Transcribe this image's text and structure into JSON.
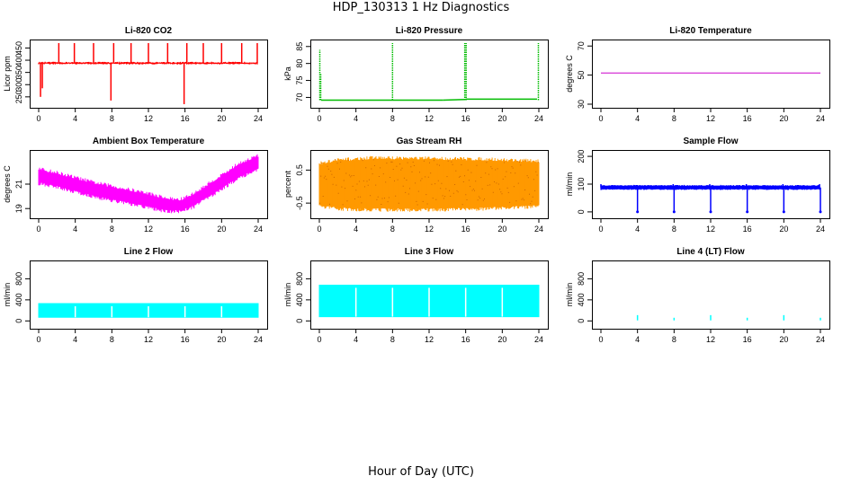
{
  "figure": {
    "title": "HDP_130313  1 Hz Diagnostics",
    "xlabel": "Hour of Day (UTC)"
  },
  "chart_data": [
    {
      "type": "line",
      "title": "Li-820 CO2",
      "ylabel": "Licor ppm",
      "color": "#ff0000",
      "xlim": [
        0,
        24
      ],
      "xticks": [
        0,
        4,
        8,
        12,
        16,
        20,
        24
      ],
      "ylim": [
        220,
        470
      ],
      "yticks": [
        250,
        300,
        350,
        400,
        450
      ],
      "base": 388,
      "noise": 4,
      "band": 1.5,
      "spikes": [
        {
          "x": 0.2,
          "y": 250
        },
        {
          "x": 0.4,
          "y": 285
        },
        {
          "x": 2.2,
          "y": 470
        },
        {
          "x": 3.9,
          "y": 470
        },
        {
          "x": 6.0,
          "y": 470
        },
        {
          "x": 7.9,
          "y": 235
        },
        {
          "x": 8.2,
          "y": 470
        },
        {
          "x": 10.1,
          "y": 470
        },
        {
          "x": 12.0,
          "y": 470
        },
        {
          "x": 14.1,
          "y": 470
        },
        {
          "x": 15.9,
          "y": 220
        },
        {
          "x": 16.2,
          "y": 470
        },
        {
          "x": 18.0,
          "y": 470
        },
        {
          "x": 20.0,
          "y": 470
        },
        {
          "x": 22.2,
          "y": 470
        },
        {
          "x": 23.9,
          "y": 470
        }
      ]
    },
    {
      "type": "line",
      "title": "Li-820 Pressure",
      "ylabel": "kPa",
      "color": "#00bb00",
      "xlim": [
        0,
        24
      ],
      "xticks": [
        0,
        4,
        8,
        12,
        16,
        20,
        24
      ],
      "ylim": [
        68,
        86
      ],
      "yticks": [
        70,
        75,
        80,
        85
      ],
      "segments": [
        {
          "x0": 0.2,
          "x1": 13.5,
          "y0": 69.2,
          "y1": 69.2
        },
        {
          "x0": 13.5,
          "x1": 16.0,
          "y0": 69.2,
          "y1": 69.4
        },
        {
          "x0": 16.0,
          "x1": 23.8,
          "y0": 69.5,
          "y1": 69.5
        }
      ],
      "spikes": [
        {
          "x": 0.05,
          "y": 84
        },
        {
          "x": 0.15,
          "y": 77
        },
        {
          "x": 8.0,
          "y": 86
        },
        {
          "x": 15.9,
          "y": 86
        },
        {
          "x": 16.05,
          "y": 86
        },
        {
          "x": 23.95,
          "y": 86
        }
      ]
    },
    {
      "type": "line",
      "title": "Li-820 Temperature",
      "ylabel": "degrees C",
      "color": "#cc00cc",
      "xlim": [
        0,
        24
      ],
      "xticks": [
        0,
        4,
        8,
        12,
        16,
        20,
        24
      ],
      "ylim": [
        30,
        72
      ],
      "yticks": [
        30,
        50,
        70
      ],
      "x": [
        0,
        24
      ],
      "y": [
        51.5,
        51.5
      ]
    },
    {
      "type": "area",
      "title": "Ambient Box Temperature",
      "ylabel": "degrees C",
      "color": "#ff00ff",
      "xlim": [
        0,
        24
      ],
      "xticks": [
        0,
        4,
        8,
        12,
        16,
        20,
        24
      ],
      "ylim": [
        18.5,
        23.5
      ],
      "yticks": [
        19,
        21
      ],
      "x": [
        0,
        2,
        4,
        6,
        8,
        10,
        12,
        14,
        15.5,
        17,
        18,
        20,
        22,
        24
      ],
      "upper": [
        22.1,
        21.8,
        21.4,
        21.0,
        20.7,
        20.4,
        20.1,
        19.7,
        19.6,
        20.1,
        20.6,
        21.6,
        22.6,
        23.2
      ],
      "lower": [
        21.2,
        20.9,
        20.5,
        20.1,
        19.8,
        19.5,
        19.2,
        18.9,
        18.9,
        19.3,
        19.8,
        20.7,
        21.7,
        22.3
      ]
    },
    {
      "type": "area",
      "title": "Gas Stream RH",
      "ylabel": "percent",
      "color": "#ff9900",
      "xlim": [
        0,
        24
      ],
      "xticks": [
        0,
        4,
        8,
        12,
        16,
        20,
        24
      ],
      "ylim": [
        -0.85,
        1.0
      ],
      "yticks": [
        -0.5,
        0.5
      ],
      "x": [
        0,
        2,
        6,
        12,
        18,
        24
      ],
      "upper": [
        0.65,
        0.75,
        0.82,
        0.8,
        0.78,
        0.72
      ],
      "lower": [
        -0.55,
        -0.62,
        -0.65,
        -0.65,
        -0.62,
        -0.55
      ]
    },
    {
      "type": "line",
      "title": "Sample Flow",
      "ylabel": "ml/min",
      "color": "#0000ff",
      "xlim": [
        0,
        24
      ],
      "xticks": [
        0,
        4,
        8,
        12,
        16,
        20,
        24
      ],
      "ylim": [
        -10,
        210
      ],
      "yticks": [
        0,
        100,
        200
      ],
      "base": 88,
      "noise": 3,
      "band": 6,
      "spikes": [
        {
          "x": 0.0,
          "y": 100
        },
        {
          "x": 4.0,
          "y": 0
        },
        {
          "x": 7.9,
          "y": 100
        },
        {
          "x": 8.0,
          "y": 0
        },
        {
          "x": 11.9,
          "y": 100
        },
        {
          "x": 12.0,
          "y": 0
        },
        {
          "x": 15.9,
          "y": 100
        },
        {
          "x": 16.0,
          "y": 0
        },
        {
          "x": 19.9,
          "y": 100
        },
        {
          "x": 20.0,
          "y": 0
        },
        {
          "x": 23.9,
          "y": 100
        },
        {
          "x": 24.0,
          "y": 0
        }
      ]
    },
    {
      "type": "area",
      "title": "Line 2 Flow",
      "ylabel": "ml/min",
      "color": "#00ffff",
      "xlim": [
        0,
        24
      ],
      "xticks": [
        0,
        4,
        8,
        12,
        16,
        20,
        24
      ],
      "ylim": [
        -80,
        1080
      ],
      "yticks": [
        0,
        400,
        800
      ],
      "x": [
        0,
        24
      ],
      "upper": [
        330,
        330
      ],
      "lower": [
        70,
        70
      ],
      "gaps": [
        4,
        8,
        12,
        16,
        20
      ]
    },
    {
      "type": "area",
      "title": "Line 3 Flow",
      "ylabel": "ml/min",
      "color": "#00ffff",
      "xlim": [
        0,
        24
      ],
      "xticks": [
        0,
        4,
        8,
        12,
        16,
        20,
        24
      ],
      "ylim": [
        -80,
        1080
      ],
      "yticks": [
        0,
        400,
        800
      ],
      "x": [
        0,
        24
      ],
      "upper": [
        680,
        680
      ],
      "lower": [
        80,
        80
      ],
      "gaps": [
        4,
        8,
        12,
        16,
        20
      ]
    },
    {
      "type": "line",
      "title": "Line 4 (LT) Flow",
      "ylabel": "ml/min",
      "color": "#00ffff",
      "xlim": [
        0,
        24
      ],
      "xticks": [
        0,
        4,
        8,
        12,
        16,
        20,
        24
      ],
      "ylim": [
        -80,
        1080
      ],
      "yticks": [
        0,
        400,
        800
      ],
      "base": 10,
      "noise": 0,
      "band": 0,
      "spikes": [
        {
          "x": 4.0,
          "y": 110
        },
        {
          "x": 8.0,
          "y": 60
        },
        {
          "x": 12.0,
          "y": 110
        },
        {
          "x": 16.0,
          "y": 60
        },
        {
          "x": 20.0,
          "y": 110
        },
        {
          "x": 24.0,
          "y": 60
        }
      ]
    }
  ]
}
